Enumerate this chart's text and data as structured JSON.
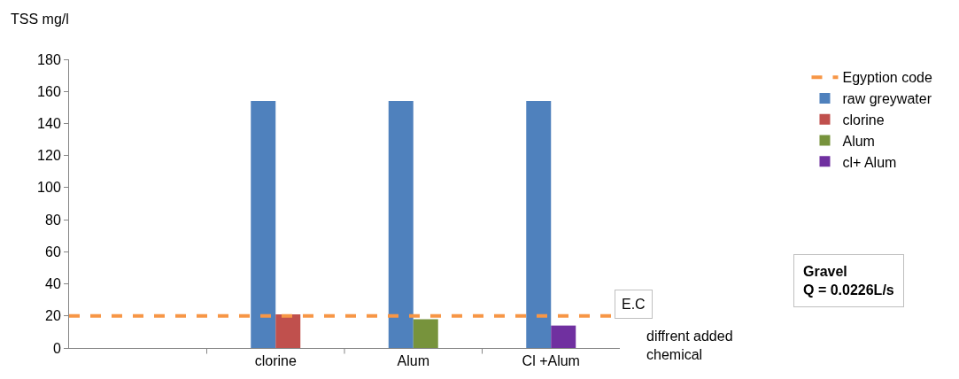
{
  "chart_data": {
    "type": "bar",
    "ylabel": "TSS mg/l",
    "xlabel": "diffrent added chemical",
    "categories": [
      null,
      "clorine",
      "Alum",
      "Cl +Alum"
    ],
    "series": [
      {
        "name": "raw greywater",
        "color": "#4f81bd",
        "values": [
          null,
          154,
          154,
          154
        ]
      },
      {
        "name": "clorine",
        "color": "#c0504d",
        "values": [
          null,
          21,
          null,
          null
        ]
      },
      {
        "name": "Alum",
        "color": "#77933c",
        "values": [
          null,
          null,
          18,
          null
        ]
      },
      {
        "name": "cl+ Alum",
        "color": "#7030a0",
        "values": [
          null,
          null,
          null,
          14
        ]
      }
    ],
    "ref_lines": [
      {
        "axis": "y",
        "value": 20,
        "label": "Egyption code",
        "color": "#f79646",
        "line_style": "dashed"
      }
    ],
    "annotations": [
      "E.C",
      "Gravel\nQ = 0.0226L/s"
    ],
    "ylim": [
      0,
      180
    ],
    "yticks": [
      0,
      20,
      40,
      60,
      80,
      100,
      120,
      140,
      160,
      180
    ],
    "legend": "right"
  }
}
